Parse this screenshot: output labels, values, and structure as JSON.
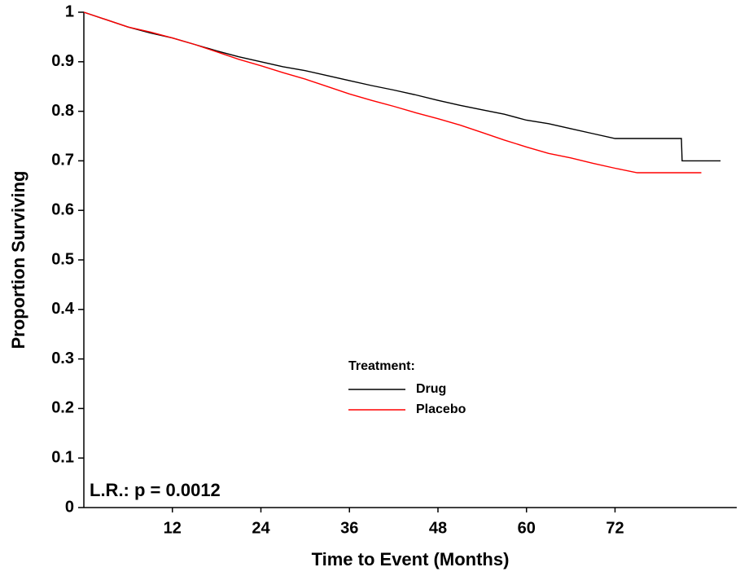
{
  "chart_data": {
    "type": "line",
    "x_label": "Time to Event (Months)",
    "y_label": "Proportion Surviving",
    "legend_title": "Treatment:",
    "annotation": "L.R.: p = 0.0012",
    "x": [
      0,
      3,
      6,
      9,
      12,
      15,
      18,
      21,
      24,
      27,
      30,
      33,
      36,
      39,
      42,
      45,
      48,
      51,
      54,
      57,
      60,
      63,
      66,
      69,
      72,
      75,
      78,
      81,
      81.1,
      83.7,
      86.3
    ],
    "series": [
      {
        "name": "Drug",
        "color": "#000000",
        "values": [
          1,
          0.985,
          0.97,
          0.958,
          0.948,
          0.935,
          0.922,
          0.91,
          0.9,
          0.89,
          0.882,
          0.872,
          0.862,
          0.852,
          0.843,
          0.833,
          0.822,
          0.812,
          0.803,
          0.794,
          0.782,
          0.775,
          0.765,
          0.755,
          0.745,
          0.745,
          0.745,
          0.745,
          0.7,
          0.7,
          0.7
        ]
      },
      {
        "name": "Placebo",
        "color": "#ff0000",
        "values": [
          1,
          0.985,
          0.97,
          0.96,
          0.948,
          0.935,
          0.92,
          0.905,
          0.892,
          0.878,
          0.865,
          0.85,
          0.835,
          0.822,
          0.81,
          0.797,
          0.785,
          0.772,
          0.757,
          0.742,
          0.728,
          0.715,
          0.706,
          0.695,
          0.685,
          0.676,
          0.676,
          0.676,
          0.676,
          0.676,
          null
        ]
      }
    ],
    "xlim": [
      0,
      88.5
    ],
    "ylim": [
      0,
      1
    ],
    "xticks": [
      12,
      24,
      36,
      48,
      60,
      72
    ],
    "yticks": [
      0,
      0.1,
      0.2,
      0.3,
      0.4,
      0.5,
      0.6,
      0.7,
      0.8,
      0.9,
      1
    ],
    "grid": false
  }
}
